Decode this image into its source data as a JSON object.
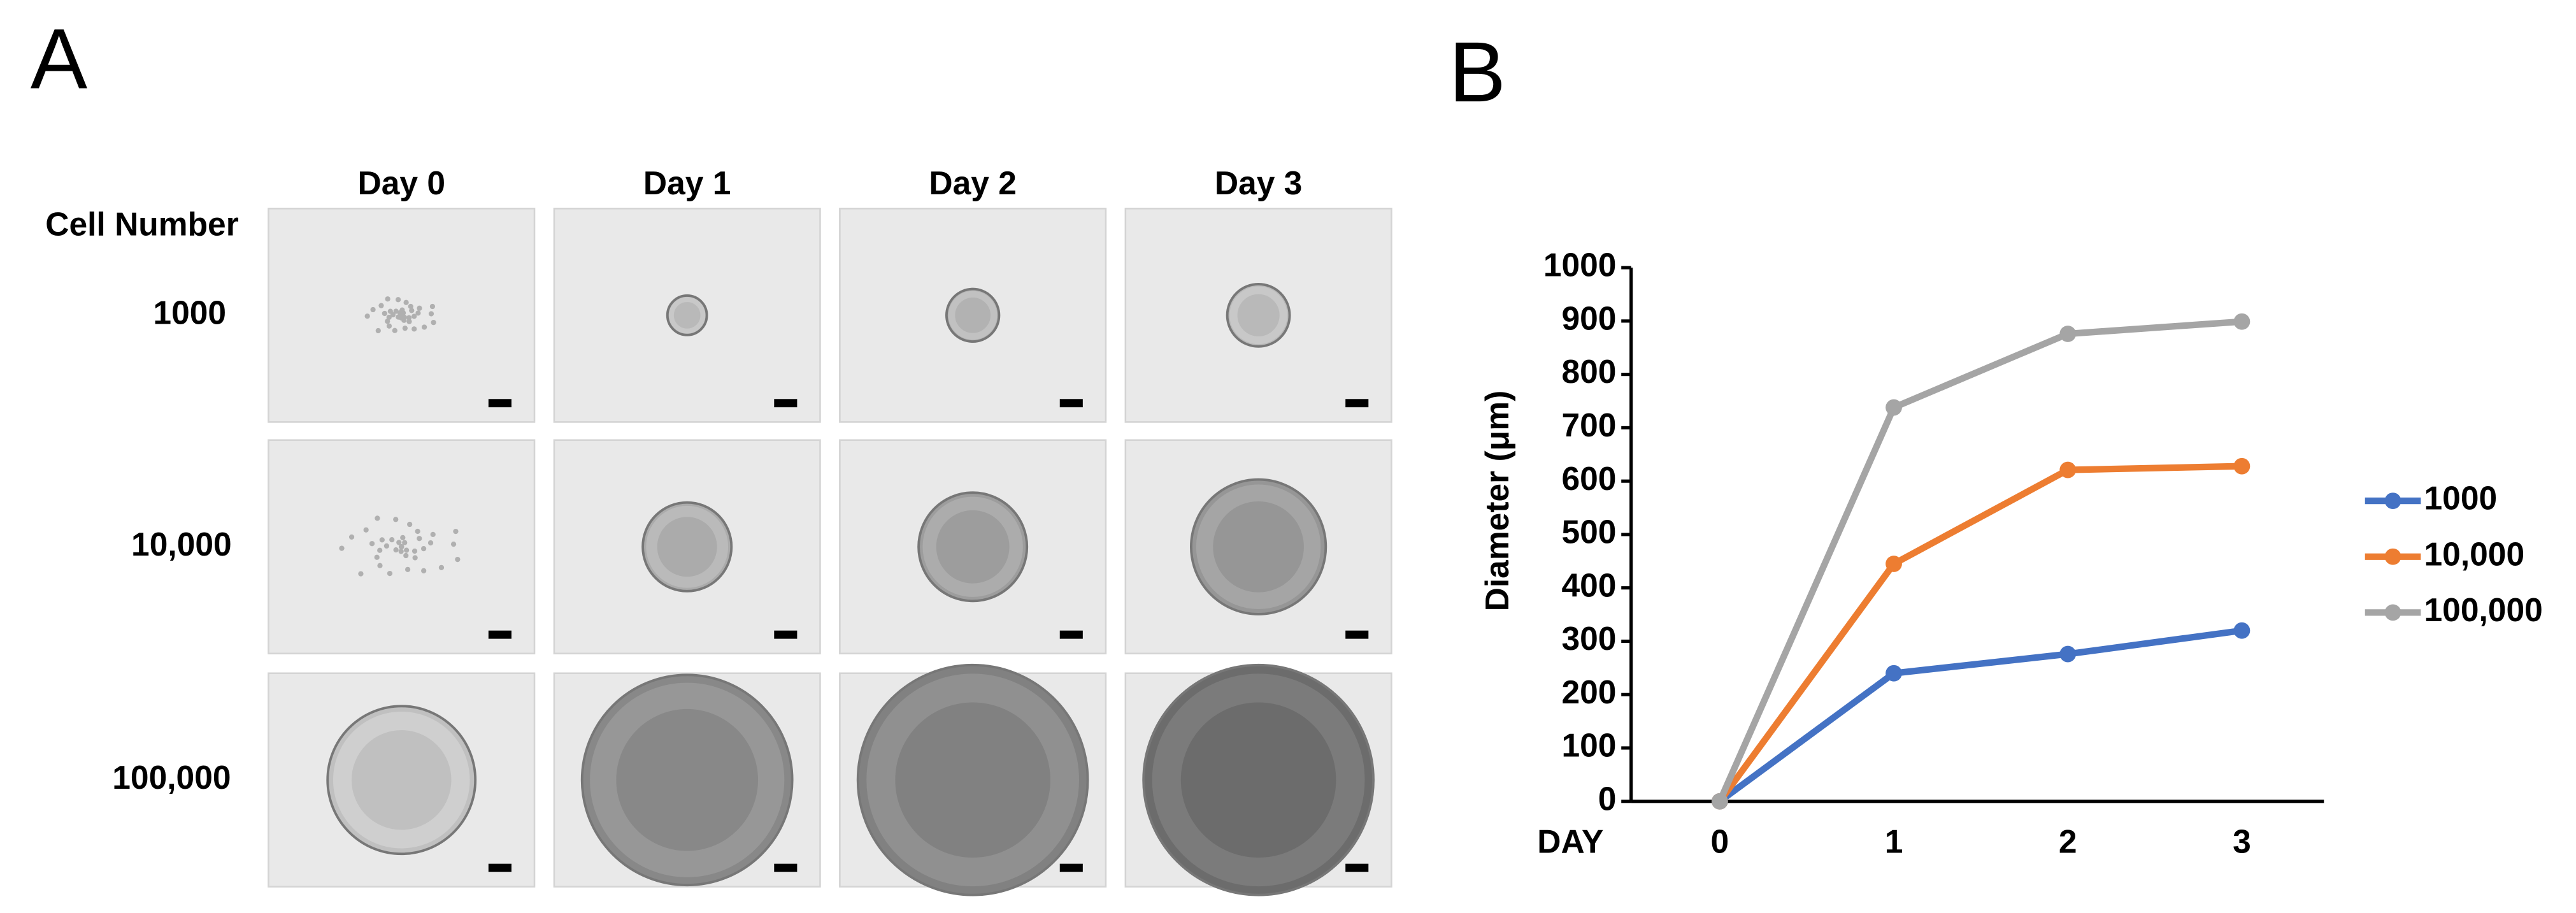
{
  "panel_a": {
    "label": "A",
    "row_header": "Cell Number",
    "columns": [
      "Day 0",
      "Day 1",
      "Day 2",
      "Day 3"
    ],
    "rows": [
      "1000",
      "10,000",
      "100,000"
    ]
  },
  "chart_data": {
    "type": "line",
    "label": "B",
    "x_label": "DAY",
    "y_label": "Diameter (μm)",
    "categories": [
      "0",
      "1",
      "2",
      "3"
    ],
    "series": [
      {
        "name": "1000",
        "color": "#4472c4",
        "values": [
          0,
          240,
          276,
          320
        ]
      },
      {
        "name": "10,000",
        "color": "#ed7d31",
        "values": [
          0,
          445,
          621,
          628
        ]
      },
      {
        "name": "100,000",
        "color": "#a5a5a5",
        "values": [
          0,
          738,
          876,
          899
        ]
      }
    ],
    "ylim": [
      0,
      1000
    ],
    "yticks": [
      0,
      100,
      200,
      300,
      400,
      500,
      600,
      700,
      800,
      900,
      1000
    ],
    "grid": false,
    "legend": "right"
  }
}
